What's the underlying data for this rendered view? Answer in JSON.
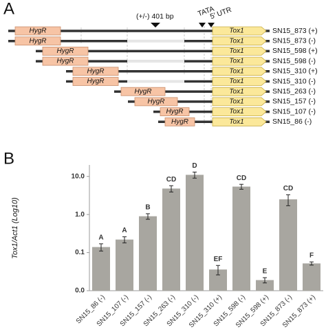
{
  "panel_a": {
    "letter": "A",
    "marker": "HygR",
    "gene": "Tox1",
    "region_label": "(+/-) 401 bp",
    "tata_label": "TATA",
    "utr_label": "5′ UTR",
    "constructs": [
      "SN15_873 (+)",
      "SN15_873 (-)",
      "SN15_598 (+)",
      "SN15_598 (-)",
      "SN15_310 (+)",
      "SN15_310 (-)",
      "SN15_263 (-)",
      "SN15_157 (-)",
      "SN15_107 (-)",
      "SN15_86 (-)"
    ]
  },
  "chart_data": {
    "type": "bar",
    "letter": "B",
    "ylabel": "Tox1/Act1 (Log10)",
    "categories": [
      "SN15_86 (-)",
      "SN15_107 (-)",
      "SN15_157 (-)",
      "SN15_263 (-)",
      "SN15_310 (-)",
      "SN15_310 (+)",
      "SN15_598 (-)",
      "SN15_598 (+)",
      "SN15_873 (-)",
      "SN15_873 (+)"
    ],
    "values": [
      0.14,
      0.22,
      0.9,
      4.8,
      11,
      0.036,
      5.4,
      0.019,
      2.5,
      0.052
    ],
    "errors": [
      0.03,
      0.04,
      0.15,
      0.9,
      2,
      0.01,
      0.8,
      0.003,
      0.8,
      0.005
    ],
    "annotations": [
      "A",
      "A",
      "B",
      "CD",
      "D",
      "EF",
      "CD",
      "E",
      "CD",
      "F"
    ],
    "color": "#a8a6a0",
    "log_scale": true,
    "ylim": [
      0.01,
      20
    ],
    "yticks": [
      {
        "value": 0.01,
        "label": "0.0"
      },
      {
        "value": 0.1,
        "label": "0.1"
      },
      {
        "value": 1,
        "label": "1.0"
      },
      {
        "value": 10,
        "label": "10.0"
      }
    ]
  }
}
